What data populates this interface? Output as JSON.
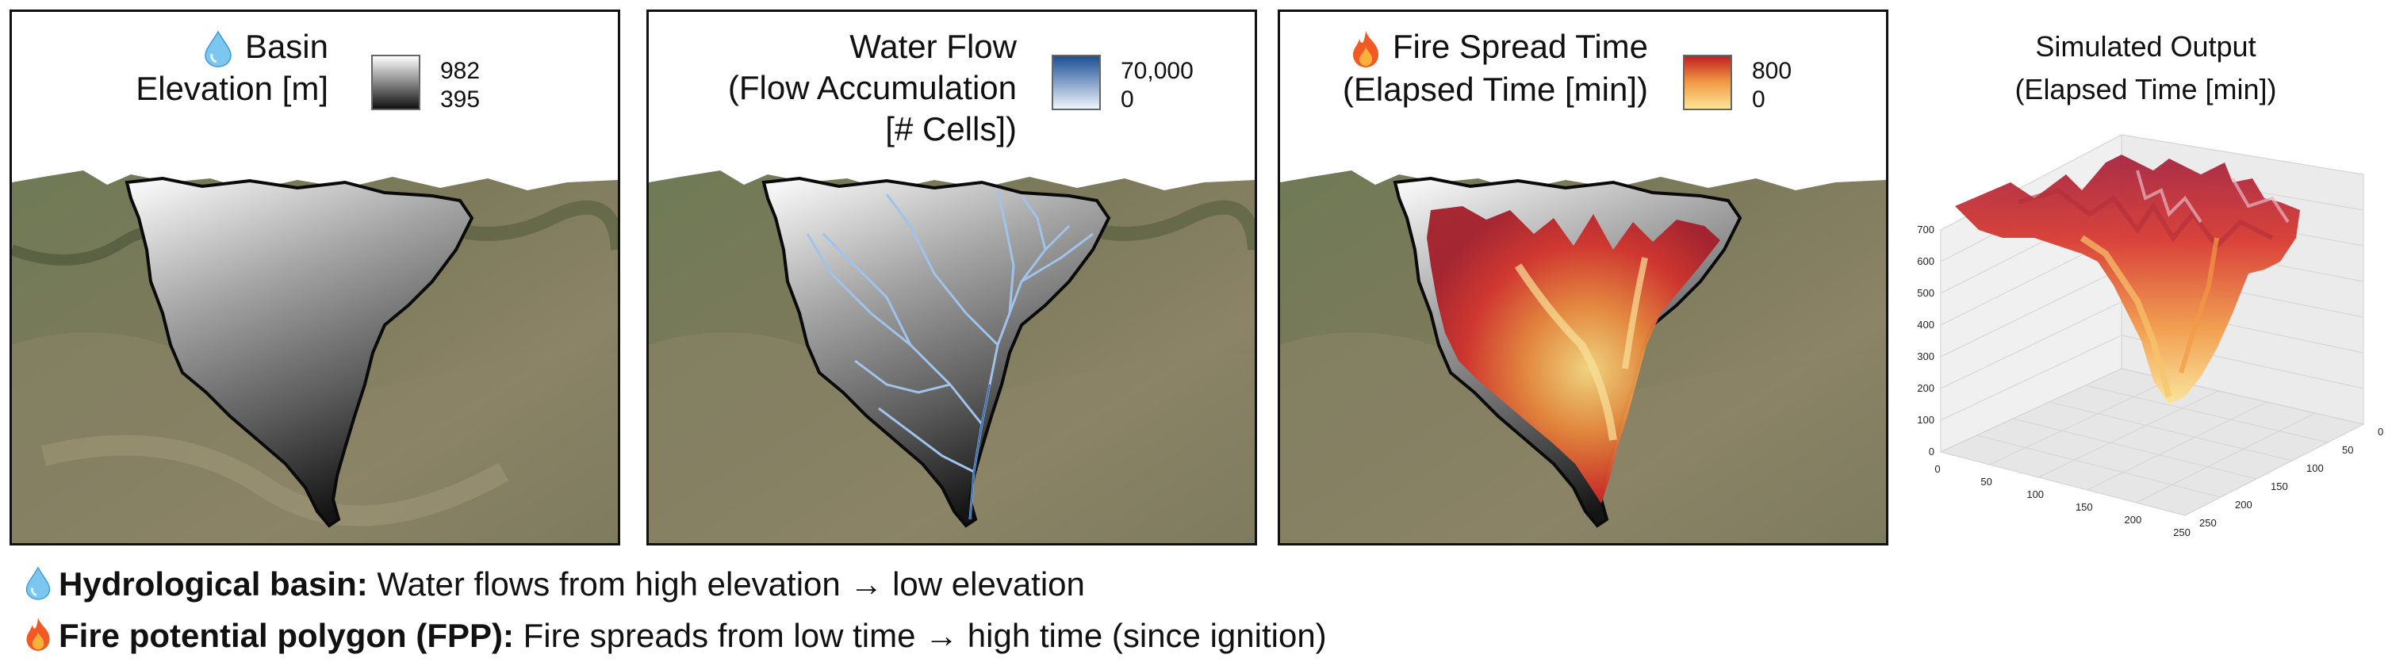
{
  "panels": [
    {
      "title_lines": [
        "Basin",
        "Elevation [m]"
      ],
      "icon": "water-drop-icon",
      "legend": {
        "max_label": "982",
        "min_label": "395",
        "colors": [
          "#ffffff",
          "#111111"
        ]
      }
    },
    {
      "title_lines": [
        "Water Flow",
        "(Flow Accumulation",
        "[# Cells])"
      ],
      "legend": {
        "max_label": "70,000",
        "min_label": "0",
        "colors": [
          "#1c4f95",
          "#eef4fb"
        ]
      }
    },
    {
      "title_lines": [
        "Fire Spread Time",
        "(Elapsed Time [min])"
      ],
      "icon": "fire-icon",
      "legend": {
        "max_label": "800",
        "min_label": "0",
        "colors": [
          "#c1201f",
          "#fbe596"
        ]
      }
    }
  ],
  "chart_data": {
    "type": "surface3d",
    "title": "Simulated Output",
    "subtitle": "(Elapsed Time [min])",
    "z_ticks": [
      0,
      100,
      200,
      300,
      400,
      500,
      600,
      700
    ],
    "x_ticks": [
      0,
      50,
      100,
      150,
      200,
      250
    ],
    "y_ticks": [
      0,
      50,
      100,
      150,
      200,
      250
    ],
    "zlim": [
      0,
      700
    ],
    "colormap": [
      "#fbe596",
      "#f29a45",
      "#d8352b",
      "#a31d3a"
    ]
  },
  "captions": [
    {
      "icon": "water-drop-icon",
      "bold": "Hydrological basin:",
      "text": " Water flows from high elevation → low elevation"
    },
    {
      "icon": "fire-icon",
      "bold": "Fire potential polygon (FPP):",
      "text": " Fire spreads from low time → high time (since ignition)"
    }
  ]
}
